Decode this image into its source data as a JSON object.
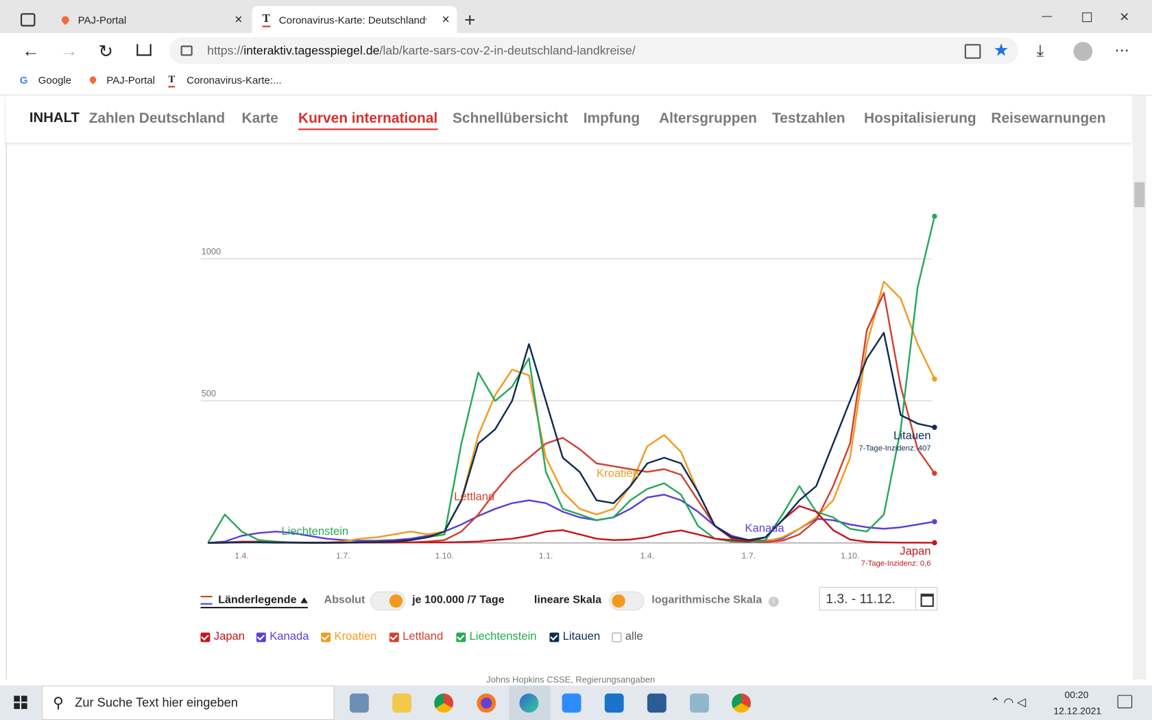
{
  "browser": {
    "tabs": [
      {
        "title": "PAJ-Portal"
      },
      {
        "title": "Coronavirus-Karte: Deutschlandw"
      }
    ],
    "url": {
      "scheme": "https://",
      "host": "interaktiv.tagesspiegel.de",
      "path": "/lab/karte-sars-cov-2-in-deutschland-landkreise/"
    },
    "bookmarks": [
      "Google",
      "PAJ-Portal",
      "Coronavirus-Karte:..."
    ]
  },
  "nav": {
    "label": "INHALT",
    "items": [
      "Zahlen Deutschland",
      "Karte",
      "Kurven international",
      "Schnellübersicht",
      "Impfung",
      "Altersgruppen",
      "Testzahlen",
      "Hospitalisierung",
      "Reisewarnungen"
    ]
  },
  "chart_data": {
    "type": "line",
    "categories": [
      null,
      null,
      "1.4.",
      null,
      null,
      null,
      null,
      null,
      "1.7.",
      null,
      null,
      null,
      null,
      null,
      "1.10.",
      null,
      null,
      null,
      null,
      null,
      "1.1.",
      null,
      null,
      null,
      null,
      null,
      "1.4.",
      null,
      null,
      null,
      null,
      null,
      "1.7.",
      null,
      null,
      null,
      null,
      null,
      "1.10.",
      null,
      null,
      null,
      null,
      null
    ],
    "series": [
      {
        "name": "Japan",
        "color": "#c4161c",
        "values": [
          0,
          1,
          2,
          3,
          2,
          1,
          0,
          0,
          1,
          2,
          3,
          3,
          2,
          2,
          2,
          3,
          5,
          10,
          15,
          25,
          40,
          45,
          30,
          15,
          10,
          12,
          20,
          35,
          44,
          30,
          15,
          10,
          5,
          20,
          80,
          130,
          110,
          45,
          12,
          4,
          2,
          1,
          1,
          0.6
        ]
      },
      {
        "name": "Kanada",
        "color": "#5a3fd6",
        "values": [
          0,
          5,
          25,
          35,
          40,
          35,
          25,
          15,
          10,
          8,
          8,
          10,
          15,
          25,
          40,
          65,
          95,
          120,
          140,
          150,
          140,
          110,
          90,
          80,
          90,
          120,
          160,
          170,
          150,
          110,
          60,
          25,
          10,
          8,
          15,
          50,
          85,
          80,
          65,
          55,
          50,
          55,
          65,
          75
        ]
      },
      {
        "name": "Kroatien",
        "color": "#f29a1f",
        "values": [
          0,
          1,
          2,
          2,
          1,
          1,
          1,
          2,
          5,
          15,
          20,
          30,
          40,
          30,
          40,
          150,
          380,
          520,
          610,
          590,
          300,
          180,
          120,
          100,
          120,
          200,
          340,
          380,
          320,
          180,
          60,
          15,
          5,
          5,
          20,
          50,
          90,
          150,
          300,
          700,
          920,
          860,
          700,
          577
        ]
      },
      {
        "name": "Lettland",
        "color": "#d2402f",
        "values": [
          0,
          2,
          5,
          5,
          3,
          2,
          1,
          1,
          1,
          1,
          1,
          1,
          2,
          5,
          10,
          40,
          100,
          180,
          250,
          300,
          350,
          370,
          330,
          280,
          270,
          260,
          250,
          260,
          240,
          150,
          60,
          15,
          5,
          3,
          8,
          30,
          80,
          200,
          350,
          750,
          880,
          550,
          330,
          245
        ]
      },
      {
        "name": "Liechtenstein",
        "color": "#27a85a",
        "values": [
          0,
          100,
          40,
          10,
          5,
          2,
          1,
          1,
          1,
          2,
          5,
          3,
          10,
          20,
          30,
          350,
          600,
          500,
          550,
          650,
          250,
          120,
          100,
          80,
          90,
          150,
          190,
          210,
          170,
          60,
          15,
          5,
          3,
          10,
          100,
          200,
          110,
          90,
          50,
          40,
          100,
          400,
          900,
          1150
        ]
      },
      {
        "name": "Litauen",
        "color": "#0f2d52",
        "values": [
          0,
          1,
          2,
          2,
          1,
          1,
          1,
          1,
          1,
          2,
          3,
          5,
          10,
          20,
          40,
          150,
          350,
          400,
          500,
          700,
          500,
          300,
          250,
          150,
          140,
          200,
          280,
          300,
          280,
          180,
          60,
          20,
          10,
          20,
          80,
          150,
          200,
          350,
          500,
          650,
          740,
          450,
          420,
          407
        ]
      }
    ],
    "ylim": [
      0,
      1200
    ],
    "yticks": [
      500,
      1000
    ],
    "grid": true,
    "annotations": [
      "7-Tage-Inzidenz: 407",
      "7-Tage-Inzidenz: 0,6"
    ]
  },
  "controls": {
    "legend_toggle": "Länderlegende",
    "absolute": "Absolut",
    "per_capita": "je 100.000 /7 Tage",
    "linear": "lineare Skala",
    "log": "logarithmische Skala",
    "date_range": "1.3. - 11.12.",
    "all": "alle"
  },
  "source": "Johns Hopkins CSSE, Regierungsangaben",
  "taskbar": {
    "search": "Zur Suche Text hier eingeben",
    "time": "00:20",
    "date": "12.12.2021"
  }
}
